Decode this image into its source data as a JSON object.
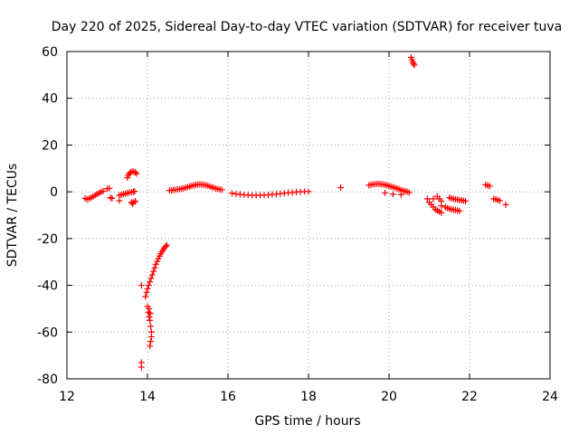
{
  "chart_data": {
    "type": "scatter",
    "title": "Day 220 of 2025, Sidereal Day-to-day VTEC variation (SDTVAR) for receiver tuva",
    "xlabel": "GPS time / hours",
    "ylabel": "SDTVAR / TECUs",
    "xlim": [
      12,
      24
    ],
    "ylim": [
      -80,
      60
    ],
    "x_ticks": [
      "12",
      "14",
      "16",
      "18",
      "20",
      "22",
      "24"
    ],
    "y_ticks": [
      "60",
      "40",
      "20",
      "0",
      "-20",
      "-40",
      "-60",
      "-80"
    ],
    "grid": true,
    "marker": "+",
    "color": "#ff0000",
    "series": [
      {
        "name": "SDTVAR",
        "points": [
          [
            12.45,
            -2.8
          ],
          [
            12.5,
            -3.2
          ],
          [
            12.55,
            -3.0
          ],
          [
            12.6,
            -2.5
          ],
          [
            12.65,
            -2.0
          ],
          [
            12.7,
            -1.5
          ],
          [
            12.75,
            -1.0
          ],
          [
            12.8,
            -0.5
          ],
          [
            12.85,
            0.0
          ],
          [
            12.9,
            0.3
          ],
          [
            13.0,
            1.3
          ],
          [
            13.05,
            1.5
          ],
          [
            13.08,
            -2.5
          ],
          [
            13.12,
            -2.8
          ],
          [
            13.3,
            -1.5
          ],
          [
            13.35,
            -1.3
          ],
          [
            13.4,
            -1.0
          ],
          [
            13.45,
            -0.8
          ],
          [
            13.5,
            -0.5
          ],
          [
            13.55,
            -0.3
          ],
          [
            13.6,
            -0.2
          ],
          [
            13.65,
            0.0
          ],
          [
            13.68,
            0.2
          ],
          [
            13.3,
            -3.8
          ],
          [
            13.5,
            6.0
          ],
          [
            13.52,
            7.0
          ],
          [
            13.55,
            7.8
          ],
          [
            13.58,
            8.3
          ],
          [
            13.62,
            8.7
          ],
          [
            13.66,
            8.6
          ],
          [
            13.7,
            8.3
          ],
          [
            13.73,
            7.8
          ],
          [
            13.6,
            -4.5
          ],
          [
            13.63,
            -5.0
          ],
          [
            13.66,
            -4.5
          ],
          [
            13.7,
            -4.0
          ],
          [
            13.85,
            -40.0
          ],
          [
            13.95,
            -44.8
          ],
          [
            13.98,
            -43.0
          ],
          [
            14.0,
            -41.5
          ],
          [
            14.03,
            -40.0
          ],
          [
            14.06,
            -38.5
          ],
          [
            14.09,
            -37.0
          ],
          [
            14.12,
            -35.5
          ],
          [
            14.15,
            -34.0
          ],
          [
            14.18,
            -32.5
          ],
          [
            14.21,
            -31.0
          ],
          [
            14.24,
            -29.8
          ],
          [
            14.27,
            -28.6
          ],
          [
            14.3,
            -27.5
          ],
          [
            14.33,
            -26.5
          ],
          [
            14.36,
            -25.6
          ],
          [
            14.39,
            -24.8
          ],
          [
            14.42,
            -24.0
          ],
          [
            14.45,
            -23.4
          ],
          [
            14.48,
            -22.8
          ],
          [
            14.0,
            -49.0
          ],
          [
            14.02,
            -51.5
          ],
          [
            14.04,
            -53.5
          ],
          [
            14.06,
            -55.0
          ],
          [
            14.08,
            -57.5
          ],
          [
            14.1,
            -60.0
          ],
          [
            14.1,
            -62.0
          ],
          [
            14.08,
            -64.0
          ],
          [
            14.06,
            -66.0
          ],
          [
            14.04,
            -50.0
          ],
          [
            14.07,
            -52.0
          ],
          [
            13.85,
            -73.0
          ],
          [
            13.85,
            -75.0
          ],
          [
            14.55,
            0.6
          ],
          [
            14.6,
            0.7
          ],
          [
            14.65,
            0.8
          ],
          [
            14.7,
            0.9
          ],
          [
            14.75,
            1.0
          ],
          [
            14.8,
            1.1
          ],
          [
            14.85,
            1.3
          ],
          [
            14.9,
            1.5
          ],
          [
            14.95,
            1.8
          ],
          [
            15.0,
            2.0
          ],
          [
            15.05,
            2.3
          ],
          [
            15.1,
            2.5
          ],
          [
            15.15,
            2.8
          ],
          [
            15.2,
            3.0
          ],
          [
            15.25,
            3.1
          ],
          [
            15.3,
            3.2
          ],
          [
            15.35,
            3.1
          ],
          [
            15.4,
            3.0
          ],
          [
            15.45,
            2.8
          ],
          [
            15.5,
            2.6
          ],
          [
            15.55,
            2.3
          ],
          [
            15.6,
            2.0
          ],
          [
            15.65,
            1.7
          ],
          [
            15.7,
            1.4
          ],
          [
            15.75,
            1.2
          ],
          [
            15.8,
            1.0
          ],
          [
            15.85,
            0.9
          ],
          [
            16.1,
            -0.6
          ],
          [
            16.2,
            -0.9
          ],
          [
            16.3,
            -1.1
          ],
          [
            16.4,
            -1.3
          ],
          [
            16.5,
            -1.4
          ],
          [
            16.6,
            -1.5
          ],
          [
            16.7,
            -1.5
          ],
          [
            16.8,
            -1.5
          ],
          [
            16.9,
            -1.4
          ],
          [
            17.0,
            -1.3
          ],
          [
            17.1,
            -1.1
          ],
          [
            17.2,
            -1.0
          ],
          [
            17.3,
            -0.8
          ],
          [
            17.4,
            -0.6
          ],
          [
            17.5,
            -0.4
          ],
          [
            17.6,
            -0.3
          ],
          [
            17.7,
            -0.1
          ],
          [
            17.8,
            0.0
          ],
          [
            17.9,
            0.1
          ],
          [
            18.0,
            0.1
          ],
          [
            18.8,
            1.8
          ],
          [
            19.5,
            2.8
          ],
          [
            19.55,
            3.0
          ],
          [
            19.6,
            3.2
          ],
          [
            19.65,
            3.3
          ],
          [
            19.7,
            3.4
          ],
          [
            19.75,
            3.4
          ],
          [
            19.8,
            3.3
          ],
          [
            19.85,
            3.2
          ],
          [
            19.9,
            3.0
          ],
          [
            19.95,
            2.8
          ],
          [
            20.0,
            2.5
          ],
          [
            20.05,
            2.3
          ],
          [
            20.1,
            2.0
          ],
          [
            20.15,
            1.7
          ],
          [
            20.2,
            1.4
          ],
          [
            20.25,
            1.1
          ],
          [
            20.3,
            0.8
          ],
          [
            20.35,
            0.5
          ],
          [
            20.4,
            0.3
          ],
          [
            20.45,
            0.0
          ],
          [
            20.5,
            -0.3
          ],
          [
            19.9,
            -0.5
          ],
          [
            20.1,
            -1.0
          ],
          [
            20.3,
            -1.2
          ],
          [
            20.55,
            57.5
          ],
          [
            20.57,
            56.5
          ],
          [
            20.59,
            55.5
          ],
          [
            20.61,
            54.8
          ],
          [
            20.63,
            54.2
          ],
          [
            20.95,
            -3.0
          ],
          [
            21.0,
            -4.5
          ],
          [
            21.05,
            -5.5
          ],
          [
            21.1,
            -6.5
          ],
          [
            21.15,
            -7.5
          ],
          [
            21.2,
            -8.0
          ],
          [
            21.25,
            -8.5
          ],
          [
            21.3,
            -9.0
          ],
          [
            21.2,
            -2.0
          ],
          [
            21.25,
            -3.0
          ],
          [
            21.3,
            -4.0
          ],
          [
            21.1,
            -3.0
          ],
          [
            21.3,
            -6.0
          ],
          [
            21.4,
            -6.5
          ],
          [
            21.45,
            -7.0
          ],
          [
            21.5,
            -7.3
          ],
          [
            21.55,
            -7.5
          ],
          [
            21.6,
            -7.7
          ],
          [
            21.65,
            -7.8
          ],
          [
            21.7,
            -8.0
          ],
          [
            21.75,
            -8.2
          ],
          [
            21.5,
            -2.5
          ],
          [
            21.55,
            -2.8
          ],
          [
            21.6,
            -3.0
          ],
          [
            21.65,
            -3.2
          ],
          [
            21.7,
            -3.3
          ],
          [
            21.75,
            -3.5
          ],
          [
            21.8,
            -3.6
          ],
          [
            21.85,
            -3.8
          ],
          [
            21.9,
            -4.0
          ],
          [
            22.4,
            3.0
          ],
          [
            22.45,
            2.7
          ],
          [
            22.5,
            2.4
          ],
          [
            22.6,
            -3.0
          ],
          [
            22.65,
            -3.2
          ],
          [
            22.7,
            -3.5
          ],
          [
            22.75,
            -3.8
          ],
          [
            22.9,
            -5.5
          ]
        ]
      }
    ]
  }
}
